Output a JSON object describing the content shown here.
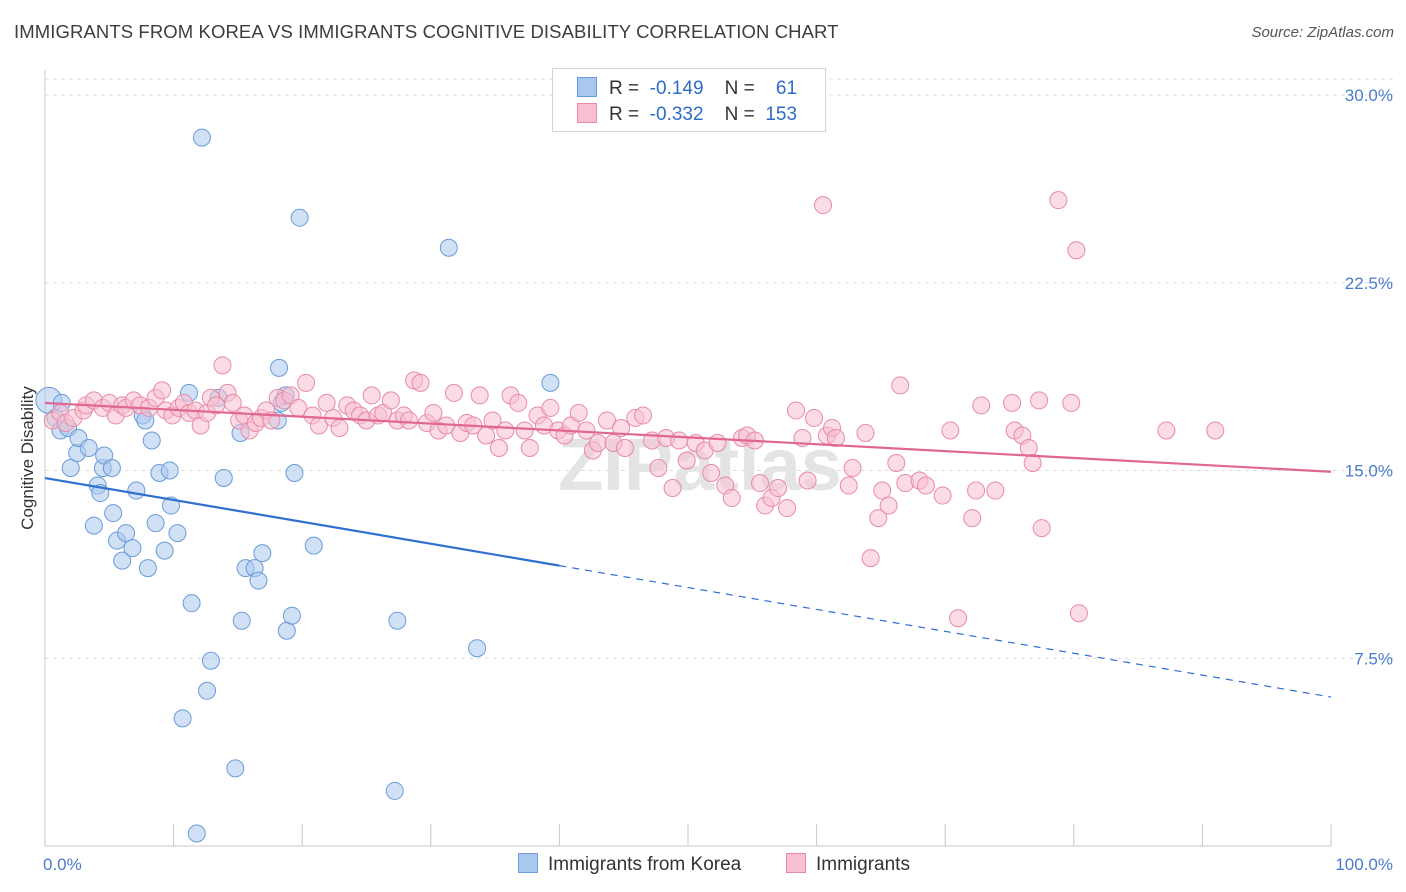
{
  "title": "IMMIGRANTS FROM KOREA VS IMMIGRANTS COGNITIVE DISABILITY CORRELATION CHART",
  "source": "Source: ZipAtlas.com",
  "watermark": "ZIPatlas",
  "legend": {
    "rows": [
      {
        "r_label": "R =",
        "r_value": "-0.149",
        "n_label": "N =",
        "n_value": "61",
        "color": "#a9c8ef",
        "border": "#6c9bd8"
      },
      {
        "r_label": "R =",
        "r_value": "-0.332",
        "n_label": "N =",
        "n_value": "153",
        "color": "#f7bfd0",
        "border": "#e88aa8"
      }
    ]
  },
  "bottom_legend": [
    {
      "label": "Immigrants from Korea",
      "color": "#a9c8ef",
      "border": "#6c9bd8"
    },
    {
      "label": "Immigrants",
      "color": "#f7bfd0",
      "border": "#e88aa8"
    }
  ],
  "chart_data": {
    "type": "scatter",
    "xlabel": "",
    "ylabel": "Cognitive Disability",
    "xlim": [
      0,
      100
    ],
    "ylim": [
      0,
      31
    ],
    "x_tick_labels": [
      "0.0%",
      "100.0%"
    ],
    "y_ticks": [
      7.5,
      15.0,
      22.5,
      30.0
    ],
    "y_tick_labels": [
      "7.5%",
      "15.0%",
      "22.5%",
      "30.0%"
    ],
    "grid": true,
    "series": [
      {
        "name": "Immigrants from Korea",
        "color": "#a9c8ef",
        "stroke": "#6c9bd8",
        "line_color": "#2f6fd0",
        "trend": {
          "x0": 0,
          "y0": 14.7,
          "x1": 40,
          "y1": 11.2,
          "dash_to_x": 100,
          "dash_to_y": 5.95
        },
        "points": [
          [
            0.3,
            17.8
          ],
          [
            0.8,
            17.1
          ],
          [
            1.2,
            16.6
          ],
          [
            1.8,
            16.7
          ],
          [
            2.0,
            15.1
          ],
          [
            2.5,
            15.7
          ],
          [
            2.6,
            16.3
          ],
          [
            3.4,
            15.9
          ],
          [
            3.8,
            12.8
          ],
          [
            4.1,
            14.4
          ],
          [
            4.3,
            14.1
          ],
          [
            4.5,
            15.1
          ],
          [
            4.6,
            15.6
          ],
          [
            5.2,
            15.1
          ],
          [
            5.3,
            13.3
          ],
          [
            5.6,
            12.2
          ],
          [
            6.0,
            11.4
          ],
          [
            6.3,
            12.5
          ],
          [
            6.8,
            11.9
          ],
          [
            7.1,
            14.2
          ],
          [
            7.6,
            17.2
          ],
          [
            7.8,
            17.0
          ],
          [
            8.0,
            11.1
          ],
          [
            8.3,
            16.2
          ],
          [
            8.6,
            12.9
          ],
          [
            8.9,
            14.9
          ],
          [
            9.3,
            11.8
          ],
          [
            9.7,
            15.0
          ],
          [
            9.8,
            13.6
          ],
          [
            10.3,
            12.5
          ],
          [
            10.7,
            5.1
          ],
          [
            11.2,
            18.1
          ],
          [
            11.4,
            9.7
          ],
          [
            11.8,
            0.5
          ],
          [
            12.2,
            28.3
          ],
          [
            12.6,
            6.2
          ],
          [
            12.9,
            7.4
          ],
          [
            13.5,
            17.9
          ],
          [
            13.9,
            14.7
          ],
          [
            14.8,
            3.1
          ],
          [
            15.2,
            16.5
          ],
          [
            15.3,
            9.0
          ],
          [
            15.6,
            11.1
          ],
          [
            16.3,
            11.1
          ],
          [
            16.6,
            10.6
          ],
          [
            16.9,
            11.7
          ],
          [
            18.1,
            17.0
          ],
          [
            18.2,
            19.1
          ],
          [
            18.4,
            17.7
          ],
          [
            18.7,
            18.0
          ],
          [
            18.8,
            8.6
          ],
          [
            19.2,
            9.2
          ],
          [
            19.4,
            14.9
          ],
          [
            19.8,
            25.1
          ],
          [
            20.9,
            12.0
          ],
          [
            27.2,
            2.2
          ],
          [
            27.4,
            9.0
          ],
          [
            31.4,
            23.9
          ],
          [
            33.6,
            7.9
          ],
          [
            39.3,
            18.5
          ],
          [
            1.3,
            17.7
          ]
        ]
      },
      {
        "name": "Immigrants",
        "color": "#f7bfd0",
        "stroke": "#e88aa8",
        "line_color": "#e0678f",
        "trend": {
          "x0": 0,
          "y0": 17.7,
          "x1": 100,
          "y1": 14.95
        },
        "points": [
          [
            0.6,
            17.0
          ],
          [
            1.2,
            17.3
          ],
          [
            1.6,
            16.9
          ],
          [
            2.2,
            17.1
          ],
          [
            3.0,
            17.4
          ],
          [
            3.2,
            17.6
          ],
          [
            3.8,
            17.8
          ],
          [
            4.5,
            17.5
          ],
          [
            5.0,
            17.7
          ],
          [
            5.5,
            17.2
          ],
          [
            6.0,
            17.6
          ],
          [
            6.3,
            17.5
          ],
          [
            6.9,
            17.8
          ],
          [
            7.4,
            17.6
          ],
          [
            8.1,
            17.5
          ],
          [
            8.6,
            17.9
          ],
          [
            9.1,
            18.2
          ],
          [
            9.4,
            17.4
          ],
          [
            9.9,
            17.2
          ],
          [
            10.4,
            17.5
          ],
          [
            10.8,
            17.7
          ],
          [
            11.2,
            17.3
          ],
          [
            11.7,
            17.4
          ],
          [
            12.1,
            16.8
          ],
          [
            12.6,
            17.3
          ],
          [
            12.9,
            17.9
          ],
          [
            13.3,
            17.6
          ],
          [
            13.8,
            19.2
          ],
          [
            14.2,
            18.1
          ],
          [
            14.6,
            17.7
          ],
          [
            15.1,
            17.0
          ],
          [
            15.5,
            17.2
          ],
          [
            15.9,
            16.6
          ],
          [
            16.4,
            16.9
          ],
          [
            16.8,
            17.1
          ],
          [
            17.2,
            17.4
          ],
          [
            17.6,
            17.0
          ],
          [
            18.1,
            17.9
          ],
          [
            18.6,
            17.8
          ],
          [
            19.1,
            18.0
          ],
          [
            19.7,
            17.5
          ],
          [
            20.3,
            18.5
          ],
          [
            20.8,
            17.2
          ],
          [
            21.3,
            16.8
          ],
          [
            21.9,
            17.7
          ],
          [
            22.4,
            17.1
          ],
          [
            22.9,
            16.7
          ],
          [
            23.5,
            17.6
          ],
          [
            24.0,
            17.4
          ],
          [
            24.5,
            17.2
          ],
          [
            25.0,
            17.0
          ],
          [
            25.4,
            18.0
          ],
          [
            25.9,
            17.2
          ],
          [
            26.3,
            17.3
          ],
          [
            26.9,
            17.8
          ],
          [
            27.4,
            17.0
          ],
          [
            27.9,
            17.2
          ],
          [
            28.3,
            17.0
          ],
          [
            28.7,
            18.6
          ],
          [
            29.2,
            18.5
          ],
          [
            29.7,
            16.9
          ],
          [
            30.2,
            17.3
          ],
          [
            30.6,
            16.6
          ],
          [
            31.2,
            16.8
          ],
          [
            31.8,
            18.1
          ],
          [
            32.3,
            16.5
          ],
          [
            32.8,
            16.9
          ],
          [
            33.3,
            16.8
          ],
          [
            33.8,
            18.0
          ],
          [
            34.3,
            16.4
          ],
          [
            34.8,
            17.0
          ],
          [
            35.3,
            15.9
          ],
          [
            35.8,
            16.6
          ],
          [
            36.2,
            18.0
          ],
          [
            36.8,
            17.7
          ],
          [
            37.3,
            16.6
          ],
          [
            37.7,
            15.9
          ],
          [
            38.3,
            17.2
          ],
          [
            38.8,
            16.8
          ],
          [
            39.3,
            17.5
          ],
          [
            39.9,
            16.6
          ],
          [
            40.4,
            16.4
          ],
          [
            40.9,
            16.8
          ],
          [
            41.5,
            17.3
          ],
          [
            42.1,
            16.6
          ],
          [
            42.6,
            15.8
          ],
          [
            43.0,
            16.1
          ],
          [
            43.7,
            17.0
          ],
          [
            44.2,
            16.1
          ],
          [
            44.8,
            16.7
          ],
          [
            45.1,
            15.9
          ],
          [
            45.9,
            17.1
          ],
          [
            46.5,
            17.2
          ],
          [
            47.2,
            16.2
          ],
          [
            47.7,
            15.1
          ],
          [
            48.3,
            16.3
          ],
          [
            48.8,
            14.3
          ],
          [
            49.3,
            16.2
          ],
          [
            49.9,
            15.4
          ],
          [
            50.6,
            16.1
          ],
          [
            51.3,
            15.8
          ],
          [
            51.8,
            14.9
          ],
          [
            52.3,
            16.1
          ],
          [
            52.9,
            14.4
          ],
          [
            53.4,
            13.9
          ],
          [
            54.2,
            16.3
          ],
          [
            54.6,
            16.4
          ],
          [
            55.2,
            16.2
          ],
          [
            55.6,
            14.5
          ],
          [
            56.0,
            13.6
          ],
          [
            56.5,
            13.9
          ],
          [
            57.0,
            14.3
          ],
          [
            57.7,
            13.5
          ],
          [
            58.4,
            17.4
          ],
          [
            58.9,
            16.3
          ],
          [
            59.3,
            14.6
          ],
          [
            59.8,
            17.1
          ],
          [
            60.5,
            25.6
          ],
          [
            60.8,
            16.4
          ],
          [
            61.2,
            16.7
          ],
          [
            61.5,
            16.3
          ],
          [
            62.5,
            14.4
          ],
          [
            62.8,
            15.1
          ],
          [
            63.8,
            16.5
          ],
          [
            64.2,
            11.5
          ],
          [
            64.8,
            13.1
          ],
          [
            65.1,
            14.2
          ],
          [
            65.6,
            13.6
          ],
          [
            66.2,
            15.3
          ],
          [
            66.5,
            18.4
          ],
          [
            66.9,
            14.5
          ],
          [
            68.0,
            14.6
          ],
          [
            68.5,
            14.4
          ],
          [
            69.8,
            14.0
          ],
          [
            70.4,
            16.6
          ],
          [
            71.0,
            9.1
          ],
          [
            72.1,
            13.1
          ],
          [
            72.4,
            14.2
          ],
          [
            72.8,
            17.6
          ],
          [
            73.9,
            14.2
          ],
          [
            75.2,
            17.7
          ],
          [
            75.4,
            16.6
          ],
          [
            76.0,
            16.4
          ],
          [
            76.5,
            15.9
          ],
          [
            76.8,
            15.3
          ],
          [
            77.3,
            17.8
          ],
          [
            77.5,
            12.7
          ],
          [
            78.8,
            25.8
          ],
          [
            79.8,
            17.7
          ],
          [
            80.2,
            23.8
          ],
          [
            80.4,
            9.3
          ],
          [
            87.2,
            16.6
          ],
          [
            91.0,
            16.6
          ]
        ]
      }
    ]
  }
}
